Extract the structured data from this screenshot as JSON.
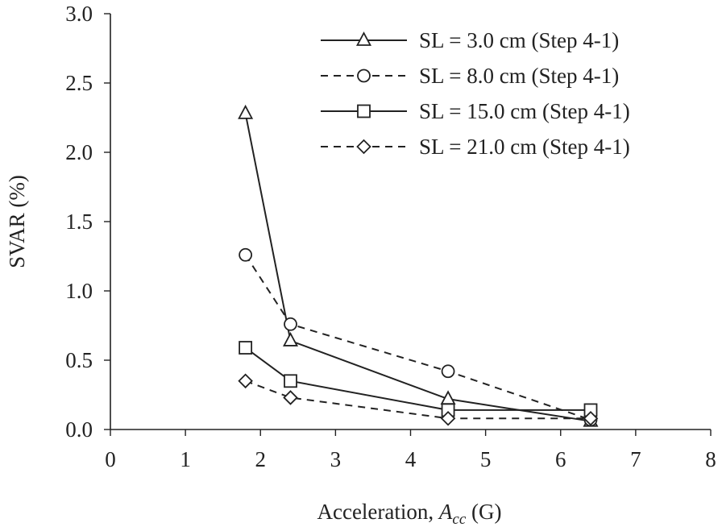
{
  "chart_data": {
    "type": "line",
    "title": "",
    "xlabel": "Acceleration, ",
    "xlabel_var": "A",
    "xlabel_sub": "cc",
    "xlabel_unit": " (G)",
    "ylabel": "SVAR (%)",
    "xlim": [
      0,
      8
    ],
    "ylim": [
      0,
      3
    ],
    "xticks": [
      0,
      1,
      2,
      3,
      4,
      5,
      6,
      7,
      8
    ],
    "yticks": [
      0.0,
      0.5,
      1.0,
      1.5,
      2.0,
      2.5,
      3.0
    ],
    "xtick_labels": [
      "0",
      "1",
      "2",
      "3",
      "4",
      "5",
      "6",
      "7",
      "8"
    ],
    "ytick_labels": [
      "0.0",
      "0.5",
      "1.0",
      "1.5",
      "2.0",
      "2.5",
      "3.0"
    ],
    "grid": false,
    "legend_position": "top-right",
    "series": [
      {
        "name": "SL = 3.0 cm (Step 4-1)",
        "marker": "triangle",
        "dash": "solid",
        "x": [
          1.8,
          2.4,
          4.5,
          6.4
        ],
        "y": [
          2.28,
          0.64,
          0.22,
          0.06
        ]
      },
      {
        "name": "SL = 8.0 cm (Step 4-1)",
        "marker": "circle",
        "dash": "dashed",
        "x": [
          1.8,
          2.4,
          4.5,
          6.4
        ],
        "y": [
          1.26,
          0.76,
          0.42,
          0.07
        ]
      },
      {
        "name": "SL = 15.0 cm (Step 4-1)",
        "marker": "square",
        "dash": "solid",
        "x": [
          1.8,
          2.4,
          4.5,
          6.4
        ],
        "y": [
          0.59,
          0.35,
          0.14,
          0.14
        ]
      },
      {
        "name": "SL = 21.0 cm (Step 4-1)",
        "marker": "diamond",
        "dash": "dashed",
        "x": [
          1.8,
          2.4,
          4.5,
          6.4
        ],
        "y": [
          0.35,
          0.23,
          0.08,
          0.08
        ]
      }
    ]
  }
}
